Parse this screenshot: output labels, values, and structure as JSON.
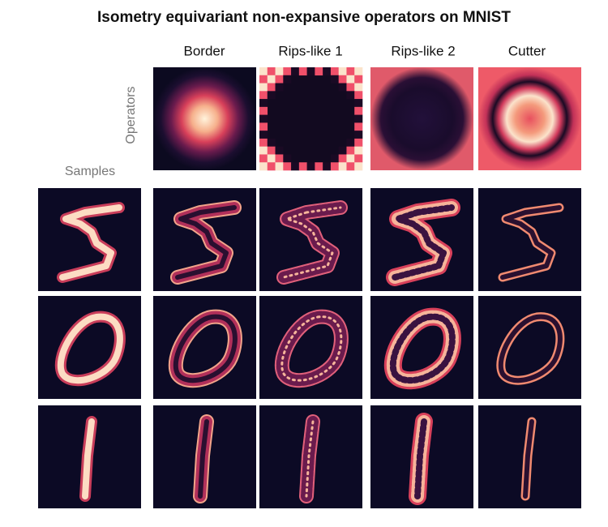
{
  "title": "Isometry equivariant non-expansive operators on MNIST",
  "column_headers": [
    "Border",
    "Rips-like 1",
    "Rips-like 2",
    "Cutter"
  ],
  "operators_label": "Operators",
  "samples_label": "Samples"
}
